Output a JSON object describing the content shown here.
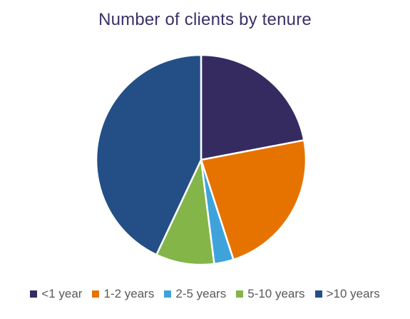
{
  "chart_data": {
    "type": "pie",
    "title": "Number of clients by tenure",
    "categories": [
      "<1 year",
      "1-2 years",
      "2-5 years",
      "5-10 years",
      ">10 years"
    ],
    "values": [
      22,
      23,
      3,
      9,
      43
    ],
    "colors": [
      "#352b61",
      "#e67300",
      "#3fa3db",
      "#84b548",
      "#244f86"
    ],
    "legend_position": "bottom",
    "start_angle_deg": 0,
    "direction": "clockwise"
  }
}
